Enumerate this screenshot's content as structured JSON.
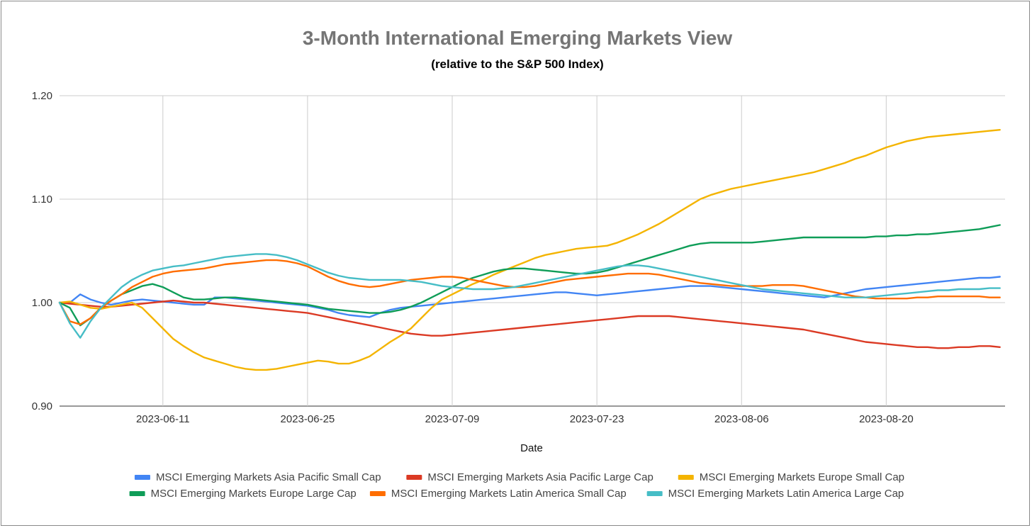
{
  "chart_data": {
    "type": "line",
    "title": "3-Month International Emerging Markets View",
    "subtitle": "(relative to the S&P 500 Index)",
    "xlabel": "Date",
    "ylabel": "",
    "ylim": [
      0.9,
      1.2
    ],
    "yticks": [
      "0.90",
      "1.00",
      "1.10",
      "1.20"
    ],
    "xticks": [
      "2023-06-11",
      "2023-06-25",
      "2023-07-09",
      "2023-07-23",
      "2023-08-06",
      "2023-08-20"
    ],
    "x_tick_positions": [
      10,
      24,
      38,
      52,
      66,
      80
    ],
    "x_range": [
      0,
      91.5
    ],
    "grid": true,
    "legend_position": "bottom",
    "x": [
      0,
      1,
      2,
      3,
      4,
      5,
      6,
      7,
      8,
      9,
      10,
      11,
      12,
      13,
      14,
      15,
      16,
      17,
      18,
      19,
      20,
      21,
      22,
      23,
      24,
      25,
      26,
      27,
      28,
      29,
      30,
      31,
      32,
      33,
      34,
      35,
      36,
      37,
      38,
      39,
      40,
      41,
      42,
      43,
      44,
      45,
      46,
      47,
      48,
      49,
      50,
      51,
      52,
      53,
      54,
      55,
      56,
      57,
      58,
      59,
      60,
      61,
      62,
      63,
      64,
      65,
      66,
      67,
      68,
      69,
      70,
      71,
      72,
      73,
      74,
      75,
      76,
      77,
      78,
      79,
      80,
      81,
      82,
      83,
      84,
      85,
      86,
      87,
      88,
      89,
      90,
      91
    ],
    "series": [
      {
        "name": "MSCI Emerging Markets Asia Pacific Small Cap",
        "color": "#4285f4",
        "values": [
          1.0,
          1.0,
          1.008,
          1.003,
          1.0,
          0.998,
          1.0,
          1.002,
          1.003,
          1.002,
          1.001,
          1.0,
          0.999,
          0.998,
          0.998,
          1.005,
          1.005,
          1.004,
          1.003,
          1.002,
          1.001,
          1.0,
          0.999,
          0.998,
          0.997,
          0.995,
          0.993,
          0.99,
          0.988,
          0.987,
          0.986,
          0.99,
          0.993,
          0.995,
          0.996,
          0.997,
          0.998,
          0.999,
          1.0,
          1.001,
          1.002,
          1.003,
          1.004,
          1.005,
          1.006,
          1.007,
          1.008,
          1.009,
          1.01,
          1.01,
          1.009,
          1.008,
          1.007,
          1.008,
          1.009,
          1.01,
          1.011,
          1.012,
          1.013,
          1.014,
          1.015,
          1.016,
          1.016,
          1.016,
          1.015,
          1.014,
          1.013,
          1.012,
          1.011,
          1.01,
          1.009,
          1.008,
          1.007,
          1.006,
          1.005,
          1.007,
          1.009,
          1.011,
          1.013,
          1.014,
          1.015,
          1.016,
          1.017,
          1.018,
          1.019,
          1.02,
          1.021,
          1.022,
          1.023,
          1.024,
          1.024,
          1.025
        ]
      },
      {
        "name": "MSCI Emerging Markets Asia Pacific Large Cap",
        "color": "#db3a24",
        "values": [
          1.0,
          0.999,
          0.998,
          0.997,
          0.996,
          0.996,
          0.997,
          0.998,
          0.999,
          1.0,
          1.001,
          1.002,
          1.001,
          1.0,
          1.0,
          0.999,
          0.998,
          0.997,
          0.996,
          0.995,
          0.994,
          0.993,
          0.992,
          0.991,
          0.99,
          0.988,
          0.986,
          0.984,
          0.982,
          0.98,
          0.978,
          0.976,
          0.974,
          0.972,
          0.97,
          0.969,
          0.968,
          0.968,
          0.969,
          0.97,
          0.971,
          0.972,
          0.973,
          0.974,
          0.975,
          0.976,
          0.977,
          0.978,
          0.979,
          0.98,
          0.981,
          0.982,
          0.983,
          0.984,
          0.985,
          0.986,
          0.987,
          0.987,
          0.987,
          0.987,
          0.986,
          0.985,
          0.984,
          0.983,
          0.982,
          0.981,
          0.98,
          0.979,
          0.978,
          0.977,
          0.976,
          0.975,
          0.974,
          0.972,
          0.97,
          0.968,
          0.966,
          0.964,
          0.962,
          0.961,
          0.96,
          0.959,
          0.958,
          0.957,
          0.957,
          0.956,
          0.956,
          0.957,
          0.957,
          0.958,
          0.958,
          0.957
        ]
      },
      {
        "name": "MSCI Emerging Markets Europe Small Cap",
        "color": "#f4b400",
        "values": [
          1.0,
          1.001,
          0.998,
          0.995,
          0.994,
          0.996,
          0.998,
          1.0,
          0.995,
          0.985,
          0.975,
          0.965,
          0.958,
          0.952,
          0.947,
          0.944,
          0.941,
          0.938,
          0.936,
          0.935,
          0.935,
          0.936,
          0.938,
          0.94,
          0.942,
          0.944,
          0.943,
          0.941,
          0.941,
          0.944,
          0.948,
          0.955,
          0.962,
          0.968,
          0.975,
          0.985,
          0.995,
          1.003,
          1.008,
          1.013,
          1.018,
          1.022,
          1.027,
          1.031,
          1.035,
          1.039,
          1.043,
          1.046,
          1.048,
          1.05,
          1.052,
          1.053,
          1.054,
          1.055,
          1.058,
          1.062,
          1.066,
          1.071,
          1.076,
          1.082,
          1.088,
          1.094,
          1.1,
          1.104,
          1.107,
          1.11,
          1.112,
          1.114,
          1.116,
          1.118,
          1.12,
          1.122,
          1.124,
          1.126,
          1.129,
          1.132,
          1.135,
          1.139,
          1.142,
          1.146,
          1.15,
          1.153,
          1.156,
          1.158,
          1.16,
          1.161,
          1.162,
          1.163,
          1.164,
          1.165,
          1.166,
          1.167
        ]
      },
      {
        "name": "MSCI Emerging Markets Europe Large Cap",
        "color": "#0f9d58",
        "values": [
          1.0,
          0.995,
          0.978,
          0.985,
          0.995,
          1.002,
          1.008,
          1.012,
          1.016,
          1.018,
          1.015,
          1.01,
          1.005,
          1.003,
          1.003,
          1.004,
          1.005,
          1.005,
          1.004,
          1.003,
          1.002,
          1.001,
          1.0,
          0.999,
          0.998,
          0.996,
          0.994,
          0.993,
          0.992,
          0.991,
          0.99,
          0.99,
          0.991,
          0.993,
          0.996,
          1.0,
          1.005,
          1.01,
          1.015,
          1.02,
          1.024,
          1.027,
          1.03,
          1.032,
          1.033,
          1.033,
          1.032,
          1.031,
          1.03,
          1.029,
          1.028,
          1.028,
          1.029,
          1.031,
          1.034,
          1.037,
          1.04,
          1.043,
          1.046,
          1.049,
          1.052,
          1.055,
          1.057,
          1.058,
          1.058,
          1.058,
          1.058,
          1.058,
          1.059,
          1.06,
          1.061,
          1.062,
          1.063,
          1.063,
          1.063,
          1.063,
          1.063,
          1.063,
          1.063,
          1.064,
          1.064,
          1.065,
          1.065,
          1.066,
          1.066,
          1.067,
          1.068,
          1.069,
          1.07,
          1.071,
          1.073,
          1.075
        ]
      },
      {
        "name": "MSCI Emerging Markets Latin America Small Cap",
        "color": "#ff6d00",
        "values": [
          1.0,
          0.982,
          0.979,
          0.985,
          0.995,
          1.002,
          1.008,
          1.015,
          1.02,
          1.025,
          1.028,
          1.03,
          1.031,
          1.032,
          1.033,
          1.035,
          1.037,
          1.038,
          1.039,
          1.04,
          1.041,
          1.041,
          1.04,
          1.038,
          1.035,
          1.03,
          1.025,
          1.021,
          1.018,
          1.016,
          1.015,
          1.016,
          1.018,
          1.02,
          1.022,
          1.023,
          1.024,
          1.025,
          1.025,
          1.024,
          1.022,
          1.02,
          1.018,
          1.016,
          1.015,
          1.015,
          1.016,
          1.018,
          1.02,
          1.022,
          1.023,
          1.024,
          1.025,
          1.026,
          1.027,
          1.028,
          1.028,
          1.028,
          1.027,
          1.025,
          1.023,
          1.021,
          1.019,
          1.018,
          1.017,
          1.016,
          1.016,
          1.016,
          1.016,
          1.017,
          1.017,
          1.017,
          1.016,
          1.014,
          1.012,
          1.01,
          1.008,
          1.006,
          1.005,
          1.004,
          1.004,
          1.004,
          1.004,
          1.005,
          1.005,
          1.006,
          1.006,
          1.006,
          1.006,
          1.006,
          1.005,
          1.005
        ]
      },
      {
        "name": "MSCI Emerging Markets Latin America Large Cap",
        "color": "#46bdc6",
        "values": [
          1.0,
          0.98,
          0.966,
          0.982,
          0.995,
          1.005,
          1.015,
          1.022,
          1.027,
          1.031,
          1.033,
          1.035,
          1.036,
          1.038,
          1.04,
          1.042,
          1.044,
          1.045,
          1.046,
          1.047,
          1.047,
          1.046,
          1.044,
          1.041,
          1.037,
          1.033,
          1.029,
          1.026,
          1.024,
          1.023,
          1.022,
          1.022,
          1.022,
          1.022,
          1.021,
          1.02,
          1.018,
          1.016,
          1.015,
          1.014,
          1.013,
          1.013,
          1.013,
          1.014,
          1.015,
          1.017,
          1.019,
          1.021,
          1.023,
          1.025,
          1.027,
          1.029,
          1.031,
          1.033,
          1.035,
          1.036,
          1.036,
          1.035,
          1.033,
          1.031,
          1.029,
          1.027,
          1.025,
          1.023,
          1.021,
          1.019,
          1.017,
          1.015,
          1.013,
          1.012,
          1.011,
          1.01,
          1.009,
          1.008,
          1.007,
          1.006,
          1.005,
          1.005,
          1.005,
          1.006,
          1.007,
          1.008,
          1.009,
          1.01,
          1.011,
          1.012,
          1.012,
          1.013,
          1.013,
          1.013,
          1.014,
          1.014
        ]
      }
    ]
  }
}
